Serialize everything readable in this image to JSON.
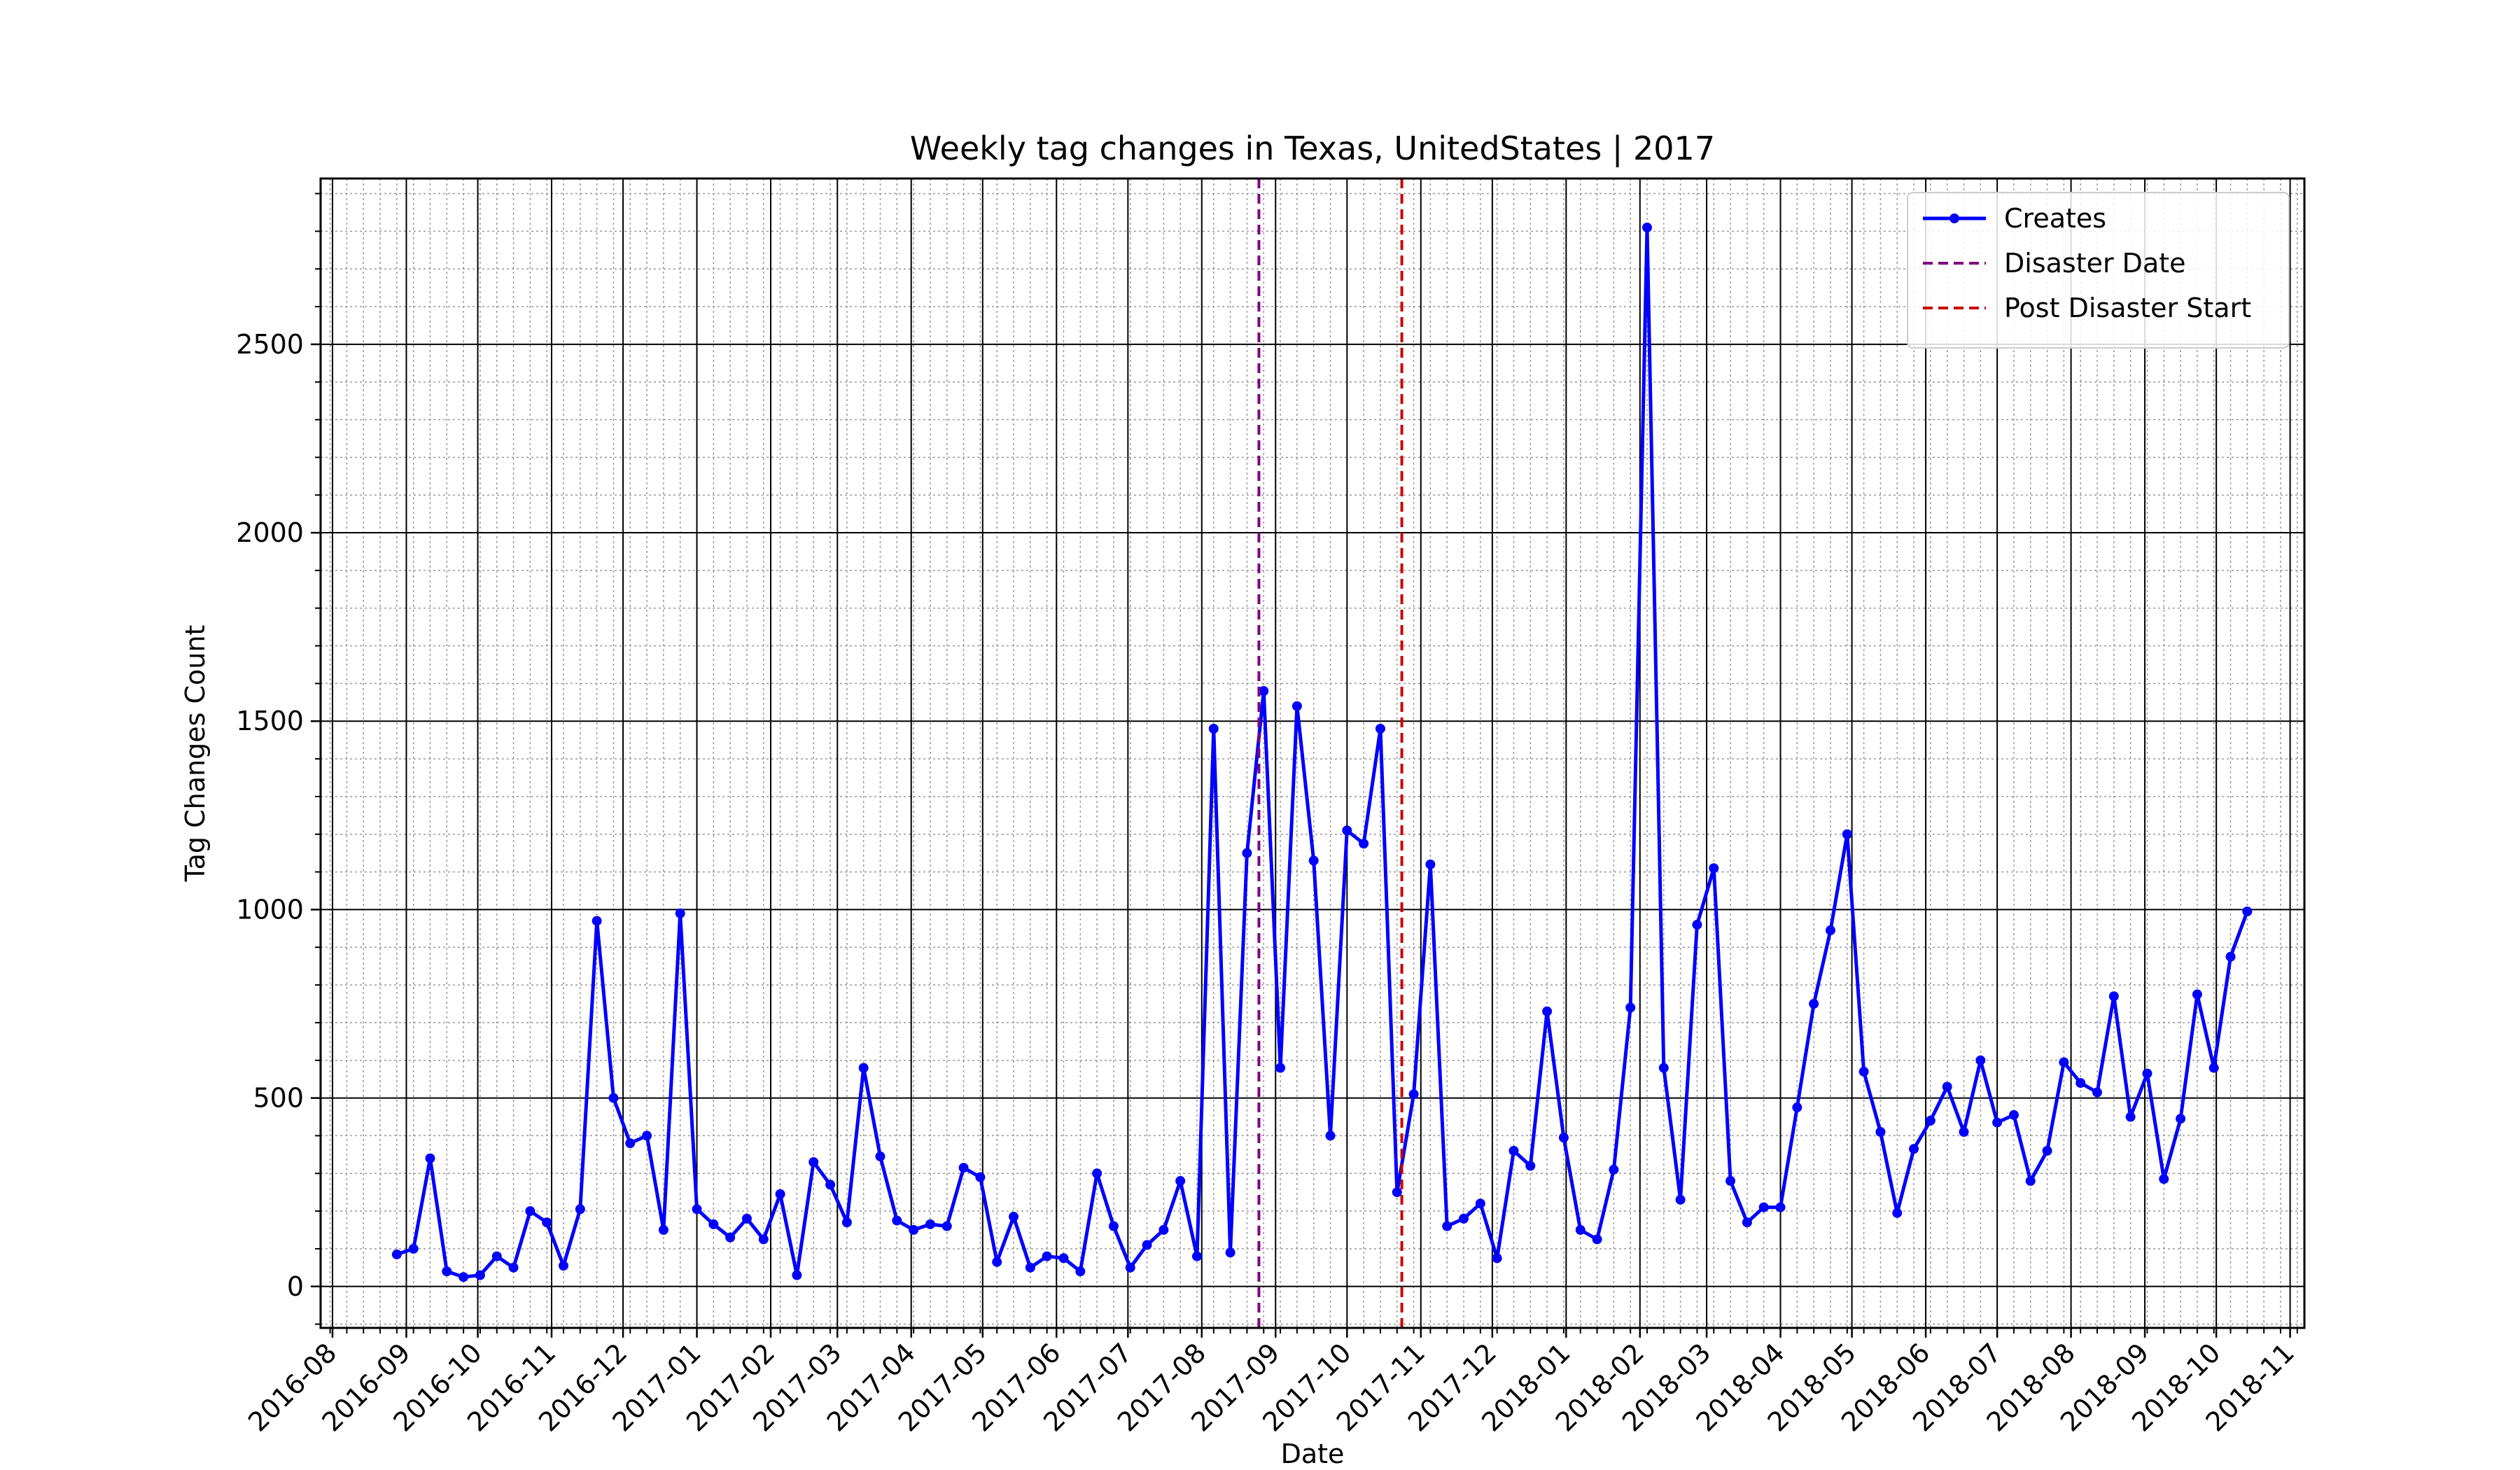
{
  "chart_data": {
    "type": "line",
    "title": "Weekly tag changes in Texas, UnitedStates | 2017",
    "xlabel": "Date",
    "ylabel": "Tag Changes Count",
    "x_range": [
      "2016-07-27",
      "2018-11-07"
    ],
    "ylim": [
      -110,
      2940
    ],
    "grid": true,
    "legend_position": "top-right",
    "x_ticks": [
      "2016-08",
      "2016-09",
      "2016-10",
      "2016-11",
      "2016-12",
      "2017-01",
      "2017-02",
      "2017-03",
      "2017-04",
      "2017-05",
      "2017-06",
      "2017-07",
      "2017-08",
      "2017-09",
      "2017-10",
      "2017-11",
      "2017-12",
      "2018-01",
      "2018-02",
      "2018-03",
      "2018-04",
      "2018-05",
      "2018-06",
      "2018-07",
      "2018-08",
      "2018-09",
      "2018-10",
      "2018-11"
    ],
    "y_ticks": [
      0,
      500,
      1000,
      1500,
      2000,
      2500
    ],
    "series": [
      {
        "name": "Creates",
        "color": "#0000ff",
        "marker": "circle",
        "x_start": "2016-08-28",
        "interval_days": 7,
        "values": [
          85,
          100,
          340,
          40,
          25,
          30,
          80,
          50,
          200,
          170,
          55,
          205,
          970,
          500,
          380,
          400,
          150,
          990,
          205,
          165,
          130,
          180,
          125,
          245,
          30,
          330,
          270,
          170,
          580,
          345,
          175,
          150,
          165,
          160,
          315,
          290,
          65,
          185,
          50,
          80,
          75,
          40,
          300,
          160,
          50,
          110,
          150,
          280,
          80,
          1480,
          90,
          1150,
          1580,
          580,
          1540,
          1130,
          400,
          1210,
          1175,
          1480,
          250,
          510,
          1120,
          160,
          180,
          220,
          75,
          360,
          320,
          730,
          395,
          150,
          125,
          310,
          740,
          2810,
          580,
          230,
          960,
          1110,
          280,
          170,
          210,
          210,
          475,
          750,
          945,
          1200,
          570,
          410,
          195,
          365,
          440,
          530,
          410,
          600,
          435,
          455,
          280,
          360,
          595,
          540,
          515,
          770,
          450,
          565,
          285,
          445,
          775,
          580,
          875,
          995
        ]
      }
    ],
    "reference_lines": [
      {
        "name": "Disaster Date",
        "date": "2017-08-25",
        "color": "#800080",
        "style": "dashed"
      },
      {
        "name": "Post Disaster Start",
        "date": "2017-10-24",
        "color": "#cc0000",
        "style": "dashed"
      }
    ]
  }
}
